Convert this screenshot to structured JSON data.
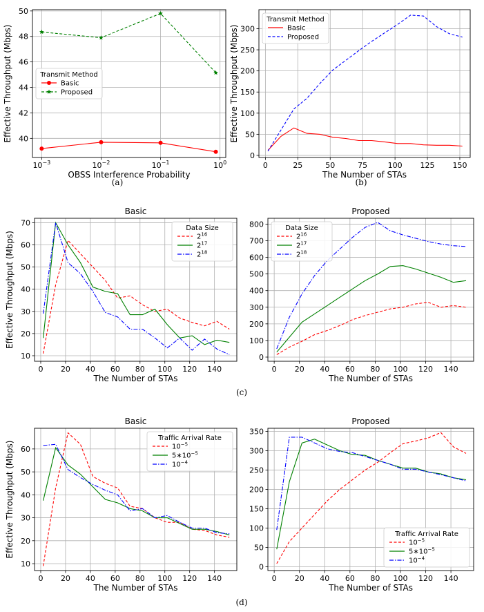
{
  "captions": [
    "(a)",
    "(b)",
    "(c)",
    "(d)"
  ],
  "chart_data": [
    {
      "id": "a",
      "type": "line",
      "title": "",
      "xlabel": "OBSS Interference Probability",
      "ylabel": "Effective Throughput (Mbps)",
      "xscale": "log",
      "xlim": [
        0.0007,
        1.25
      ],
      "ylim": [
        38.5,
        50.1
      ],
      "xticks": [
        0.001,
        0.01,
        0.1,
        1
      ],
      "xtick_labels": [
        "10^−3",
        "10^−2",
        "10^−1",
        "10^0"
      ],
      "yticks": [
        40,
        42,
        44,
        46,
        48,
        50
      ],
      "ytick_labels": [
        "40",
        "42",
        "44",
        "46",
        "48",
        "50"
      ],
      "legend": {
        "title": "Transmit Method",
        "placement": "center-left"
      },
      "x": [
        0.001,
        0.01,
        0.1,
        0.85
      ],
      "series": [
        {
          "name": "Basic",
          "color": "#ff0000",
          "style": "solid",
          "marker": "circle",
          "values": [
            39.2,
            39.7,
            39.65,
            38.95
          ]
        },
        {
          "name": "Proposed",
          "color": "#008000",
          "style": "dashed",
          "marker": "star",
          "values": [
            48.35,
            47.9,
            49.8,
            45.15
          ]
        }
      ]
    },
    {
      "id": "b",
      "type": "line",
      "title": "",
      "xlabel": "The Number of STAs",
      "ylabel": "Effective Throughput (Mbps)",
      "xlim": [
        -5,
        158
      ],
      "ylim": [
        -5,
        345
      ],
      "xticks": [
        0,
        25,
        50,
        75,
        100,
        125,
        150
      ],
      "xtick_labels": [
        "0",
        "25",
        "50",
        "75",
        "100",
        "125",
        "150"
      ],
      "yticks": [
        0,
        50,
        100,
        150,
        200,
        250,
        300
      ],
      "ytick_labels": [
        "0",
        "50",
        "100",
        "150",
        "200",
        "250",
        "300"
      ],
      "legend": {
        "title": "Transmit Method",
        "placement": "top-left"
      },
      "x": [
        2,
        12,
        22,
        32,
        42,
        52,
        62,
        72,
        82,
        92,
        102,
        112,
        122,
        132,
        142,
        152
      ],
      "series": [
        {
          "name": "Basic",
          "color": "#ff0000",
          "style": "solid",
          "values": [
            12,
            45,
            65,
            52,
            50,
            43,
            40,
            35,
            35,
            32,
            28,
            28,
            25,
            24,
            24,
            22
          ]
        },
        {
          "name": "Proposed",
          "color": "#0000ff",
          "style": "dashed",
          "values": [
            10,
            60,
            110,
            135,
            170,
            202,
            225,
            248,
            270,
            290,
            310,
            332,
            330,
            305,
            288,
            280
          ]
        }
      ]
    },
    {
      "id": "c-basic",
      "type": "line",
      "title": "Basic",
      "xlabel": "The Number of STAs",
      "ylabel": "Effective Throughput (Mbps)",
      "xlim": [
        -5,
        158
      ],
      "ylim": [
        7.5,
        72
      ],
      "xticks": [
        0,
        20,
        40,
        60,
        80,
        100,
        120,
        140
      ],
      "xtick_labels": [
        "0",
        "20",
        "40",
        "60",
        "80",
        "100",
        "120",
        "140"
      ],
      "yticks": [
        10,
        20,
        30,
        40,
        50,
        60,
        70
      ],
      "ytick_labels": [
        "10",
        "20",
        "30",
        "40",
        "50",
        "60",
        "70"
      ],
      "legend": {
        "title": "Data Size",
        "placement": "top-right"
      },
      "x": [
        2,
        12,
        22,
        32,
        42,
        52,
        62,
        72,
        82,
        92,
        102,
        112,
        122,
        132,
        142,
        152
      ],
      "series": [
        {
          "name": "2^16",
          "color": "#ff0000",
          "style": "dashed",
          "values": [
            11,
            42,
            62,
            56,
            50,
            44,
            36,
            37,
            33,
            30,
            31,
            27,
            25,
            23.5,
            25.5,
            22
          ]
        },
        {
          "name": "2^17",
          "color": "#008000",
          "style": "solid",
          "values": [
            18,
            70,
            60,
            52,
            41,
            39,
            38,
            28.5,
            28.5,
            31,
            24,
            18,
            19,
            15,
            17,
            16
          ]
        },
        {
          "name": "2^18",
          "color": "#0000ff",
          "style": "dashdot",
          "values": [
            29,
            70,
            52,
            47,
            39,
            29.5,
            27.5,
            22,
            22,
            18,
            13.5,
            18,
            12.5,
            17.5,
            13,
            10.5
          ]
        }
      ]
    },
    {
      "id": "c-proposed",
      "type": "line",
      "title": "Proposed",
      "xlabel": "The Number of STAs",
      "ylabel": "",
      "xlim": [
        -5,
        158
      ],
      "ylim": [
        -25,
        835
      ],
      "xticks": [
        0,
        20,
        40,
        60,
        80,
        100,
        120,
        140
      ],
      "xtick_labels": [
        "0",
        "20",
        "40",
        "60",
        "80",
        "100",
        "120",
        "140"
      ],
      "yticks": [
        0,
        100,
        200,
        300,
        400,
        500,
        600,
        700,
        800
      ],
      "ytick_labels": [
        "0",
        "100",
        "200",
        "300",
        "400",
        "500",
        "600",
        "700",
        "800"
      ],
      "legend": {
        "title": "Data Size",
        "placement": "top-left"
      },
      "x": [
        2,
        12,
        22,
        32,
        42,
        52,
        62,
        72,
        82,
        92,
        102,
        112,
        122,
        132,
        142,
        152
      ],
      "series": [
        {
          "name": "2^16",
          "color": "#ff0000",
          "style": "dashed",
          "values": [
            15,
            60,
            95,
            135,
            160,
            190,
            225,
            250,
            270,
            290,
            300,
            320,
            330,
            300,
            310,
            300
          ]
        },
        {
          "name": "2^17",
          "color": "#008000",
          "style": "solid",
          "values": [
            30,
            120,
            210,
            260,
            310,
            360,
            410,
            460,
            500,
            545,
            550,
            530,
            505,
            480,
            450,
            460
          ]
        },
        {
          "name": "2^18",
          "color": "#0000ff",
          "style": "dashdot",
          "values": [
            50,
            240,
            380,
            490,
            580,
            650,
            720,
            780,
            810,
            760,
            735,
            715,
            695,
            680,
            670,
            665
          ]
        }
      ]
    },
    {
      "id": "d-basic",
      "type": "line",
      "title": "Basic",
      "xlabel": "The Number of STAs",
      "ylabel": "Effective Throughput (Mbps)",
      "xlim": [
        -5,
        158
      ],
      "ylim": [
        7,
        69
      ],
      "xticks": [
        0,
        20,
        40,
        60,
        80,
        100,
        120,
        140
      ],
      "xtick_labels": [
        "0",
        "20",
        "40",
        "60",
        "80",
        "100",
        "120",
        "140"
      ],
      "yticks": [
        10,
        20,
        30,
        40,
        50,
        60
      ],
      "ytick_labels": [
        "10",
        "20",
        "30",
        "40",
        "50",
        "60"
      ],
      "legend": {
        "title": "Traffic Arrival Rate",
        "placement": "top-right"
      },
      "x": [
        2,
        12,
        22,
        32,
        42,
        52,
        62,
        72,
        82,
        92,
        102,
        112,
        122,
        132,
        142,
        152
      ],
      "series": [
        {
          "name": "10^−5",
          "color": "#ff0000",
          "style": "dashed",
          "values": [
            9,
            43,
            67,
            62,
            48,
            45,
            43,
            35,
            34,
            30,
            28,
            28,
            25,
            24.5,
            22.5,
            21.5
          ]
        },
        {
          "name": "5∗10^−5",
          "color": "#008000",
          "style": "solid",
          "values": [
            37.5,
            60.5,
            53,
            49,
            43.5,
            38,
            36.5,
            34,
            33,
            30,
            30,
            27.5,
            25,
            25,
            24,
            22.5
          ]
        },
        {
          "name": "10^−4",
          "color": "#0000ff",
          "style": "dashdot",
          "values": [
            61.5,
            62,
            51,
            47.5,
            44.5,
            42,
            40,
            33,
            34,
            30,
            31,
            28,
            25.5,
            25.5,
            23.5,
            23
          ]
        }
      ]
    },
    {
      "id": "d-proposed",
      "type": "line",
      "title": "Proposed",
      "xlabel": "The Number of STAs",
      "ylabel": "",
      "xlim": [
        -5,
        158
      ],
      "ylim": [
        -10,
        358
      ],
      "xticks": [
        0,
        20,
        40,
        60,
        80,
        100,
        120,
        140
      ],
      "xtick_labels": [
        "0",
        "20",
        "40",
        "60",
        "80",
        "100",
        "120",
        "140"
      ],
      "yticks": [
        0,
        50,
        100,
        150,
        200,
        250,
        300,
        350
      ],
      "ytick_labels": [
        "0",
        "50",
        "100",
        "150",
        "200",
        "250",
        "300",
        "350"
      ],
      "legend": {
        "title": "Traffic Arrival Rate",
        "placement": "bottom-right"
      },
      "x": [
        2,
        12,
        22,
        32,
        42,
        52,
        62,
        72,
        82,
        92,
        102,
        112,
        122,
        132,
        142,
        152
      ],
      "series": [
        {
          "name": "10^−5",
          "color": "#ff0000",
          "style": "dashed",
          "values": [
            8,
            65,
            100,
            135,
            170,
            200,
            225,
            250,
            270,
            295,
            318,
            325,
            333,
            347,
            310,
            293
          ]
        },
        {
          "name": "5∗10^−5",
          "color": "#008000",
          "style": "solid",
          "values": [
            45,
            220,
            320,
            330,
            315,
            300,
            290,
            288,
            275,
            265,
            255,
            255,
            245,
            240,
            230,
            225
          ]
        },
        {
          "name": "10^−4",
          "color": "#0000ff",
          "style": "dashdot",
          "values": [
            95,
            335,
            335,
            320,
            305,
            298,
            295,
            285,
            275,
            265,
            252,
            252,
            245,
            238,
            230,
            222
          ]
        }
      ]
    }
  ]
}
